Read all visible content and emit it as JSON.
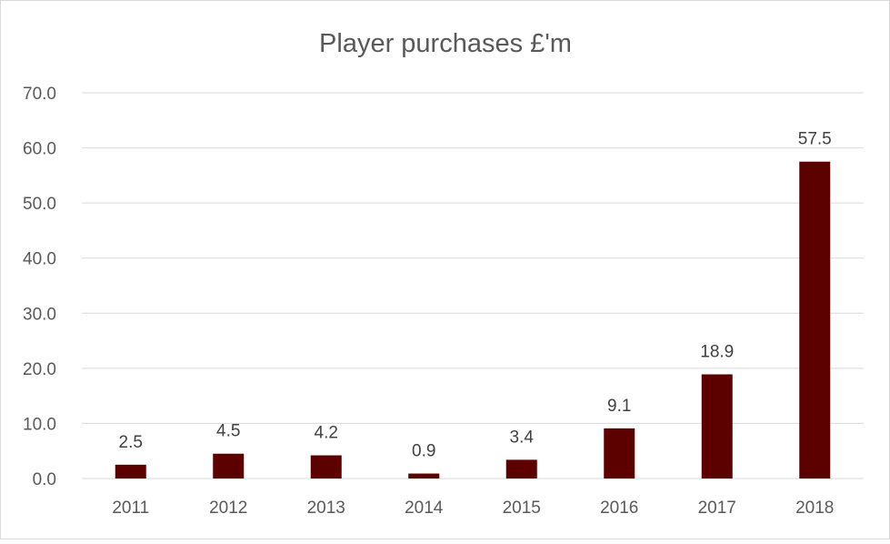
{
  "chart_data": {
    "type": "bar",
    "title": "Player purchases £'m",
    "xlabel": "",
    "ylabel": "",
    "categories": [
      "2011",
      "2012",
      "2013",
      "2014",
      "2015",
      "2016",
      "2017",
      "2018"
    ],
    "values": [
      2.5,
      4.5,
      4.2,
      0.9,
      3.4,
      9.1,
      18.9,
      57.5
    ],
    "data_labels": [
      "2.5",
      "4.5",
      "4.2",
      "0.9",
      "3.4",
      "9.1",
      "18.9",
      "57.5"
    ],
    "ylim": [
      0,
      70
    ],
    "y_ticks": [
      0,
      10,
      20,
      30,
      40,
      50,
      60,
      70
    ],
    "y_tick_labels": [
      "0.0",
      "10.0",
      "20.0",
      "30.0",
      "40.0",
      "50.0",
      "60.0",
      "70.0"
    ],
    "grid": true,
    "legend": "none",
    "colors": {
      "bar": "#5c0000",
      "grid": "#d9d9d9",
      "text": "#595959"
    }
  }
}
